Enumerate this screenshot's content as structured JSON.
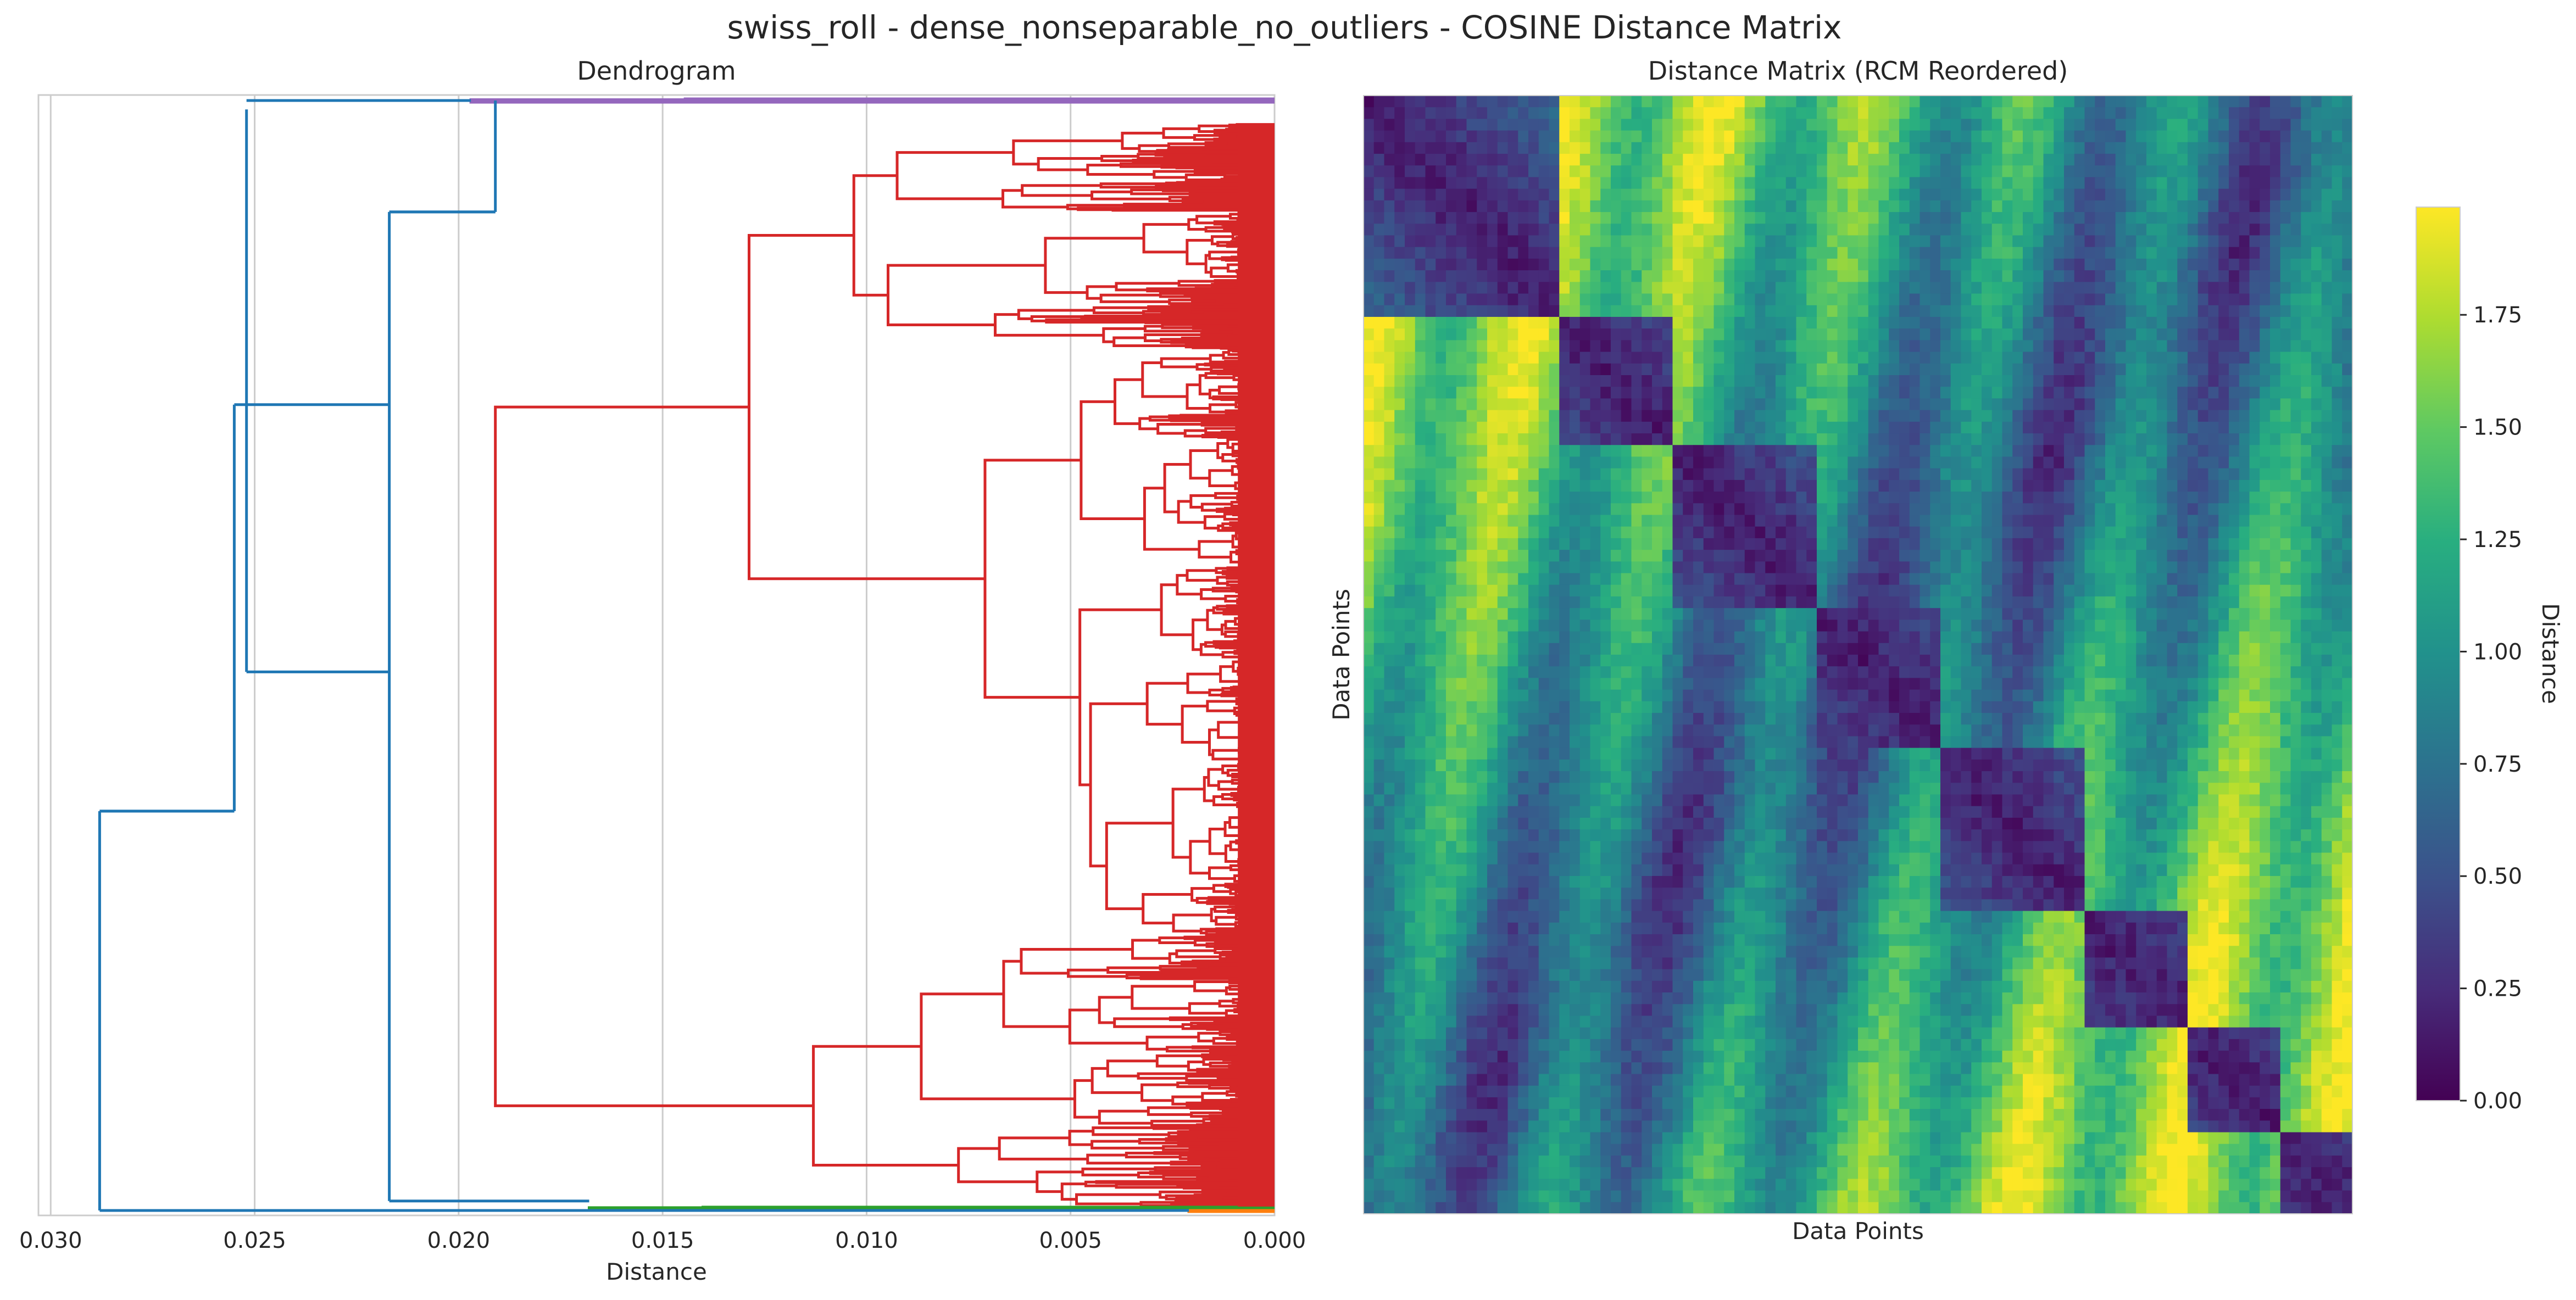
{
  "figure": {
    "suptitle": "swiss_roll - dense_nonseparable_no_outliers - COSINE Distance Matrix"
  },
  "chart_data": [
    {
      "type": "dendrogram",
      "title": "Dendrogram",
      "xlabel": "Distance",
      "ylabel": "",
      "orientation": "left",
      "xlim": [
        0.0303,
        0.0
      ],
      "x_ticks": [
        0.03,
        0.025,
        0.02,
        0.015,
        0.01,
        0.005,
        0.0
      ],
      "x_tick_labels": [
        "0.030",
        "0.025",
        "0.020",
        "0.015",
        "0.010",
        "0.005",
        "0.000"
      ],
      "grid": true,
      "leaf_range": [
        0,
        1000
      ],
      "colors": {
        "above_threshold": "#1f77b4",
        "purple_cluster": "#9467bd",
        "red_cluster": "#d62728",
        "green_cluster": "#2ca02c",
        "orange_cluster": "#ff7f0e"
      },
      "clusters": [
        {
          "color": "purple_cluster",
          "leaf_start": 996,
          "leaf_end": 1000,
          "merge_height": 0.0197
        },
        {
          "color": "red_cluster",
          "leaf_start": 5,
          "leaf_end": 977,
          "merge_height": 0.0191
        },
        {
          "color": "green_cluster",
          "leaf_start": 2,
          "leaf_end": 5,
          "merge_height": 0.0168
        },
        {
          "color": "orange_cluster",
          "leaf_start": 0,
          "leaf_end": 2,
          "merge_height": 0.0021
        }
      ],
      "links": [
        {
          "color": "above_threshold",
          "height": 0.0288,
          "y_low": 1.5,
          "y_high": 360
        },
        {
          "color": "above_threshold",
          "height": 0.0255,
          "y_low": 360,
          "y_high": 725
        },
        {
          "color": "above_threshold",
          "height": 0.0252,
          "y_low": 485,
          "y_high": 990
        },
        {
          "color": "above_threshold",
          "height": 0.0217,
          "y_low": 10,
          "y_high": 898
        },
        {
          "color": "above_threshold",
          "height": 0.0191,
          "y_low": 898,
          "y_high": 998
        }
      ],
      "connectors": [
        {
          "color": "above_threshold",
          "y": 1.5,
          "from": 0.0288,
          "to": 0.0021
        },
        {
          "color": "above_threshold",
          "y": 10,
          "from": 0.0217,
          "to": 0.0168
        },
        {
          "color": "above_threshold",
          "y": 898,
          "from": 0.0217,
          "to": 0.0191
        },
        {
          "color": "above_threshold",
          "y": 998,
          "from": 0.0252,
          "to": 0.0197
        }
      ]
    },
    {
      "type": "heatmap",
      "title": "Distance Matrix (RCM Reordered)",
      "xlabel": "Data Points",
      "ylabel": "Data Points",
      "colormap": "viridis",
      "colorbar": {
        "label": "Distance",
        "range": [
          0.0,
          1.99
        ],
        "ticks": [
          0.0,
          0.25,
          0.5,
          0.75,
          1.0,
          1.25,
          1.5,
          1.75
        ],
        "tick_labels": [
          "0.00",
          "0.25",
          "0.50",
          "0.75",
          "1.00",
          "1.25",
          "1.50",
          "1.75"
        ]
      },
      "block_boundaries_fraction": [
        0.0,
        0.19,
        0.31,
        0.45,
        0.58,
        0.72,
        0.83,
        0.92,
        1.0
      ]
    }
  ]
}
